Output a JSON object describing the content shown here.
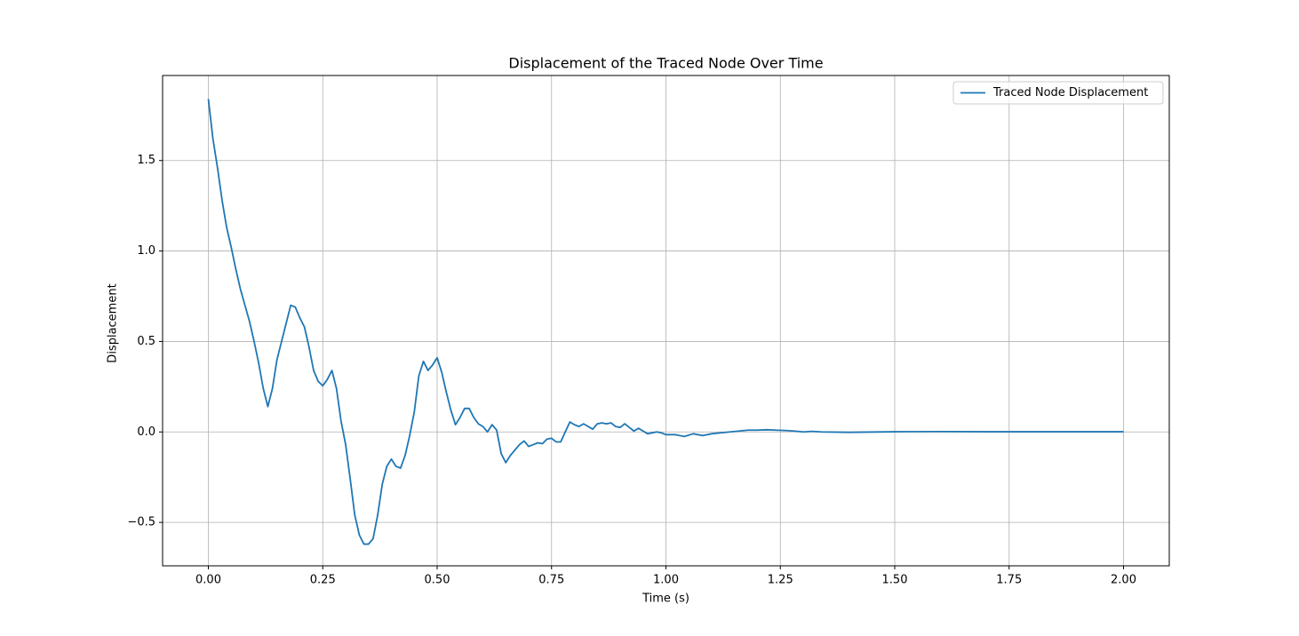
{
  "chart_data": {
    "type": "line",
    "title": "Displacement of the Traced Node Over Time",
    "x_label": "Time (s)",
    "y_label": "Displacement",
    "x": [
      0,
      0.01,
      0.02,
      0.03,
      0.04,
      0.05,
      0.06,
      0.07,
      0.08,
      0.09,
      0.1,
      0.11,
      0.12,
      0.13,
      0.14,
      0.15,
      0.16,
      0.17,
      0.18,
      0.19,
      0.2,
      0.21,
      0.22,
      0.23,
      0.24,
      0.25,
      0.26,
      0.27,
      0.28,
      0.29,
      0.3,
      0.31,
      0.32,
      0.33,
      0.34,
      0.35,
      0.36,
      0.37,
      0.38,
      0.39,
      0.4,
      0.41,
      0.42,
      0.43,
      0.44,
      0.45,
      0.46,
      0.47,
      0.48,
      0.49,
      0.5,
      0.51,
      0.52,
      0.53,
      0.54,
      0.55,
      0.56,
      0.57,
      0.58,
      0.59,
      0.6,
      0.61,
      0.62,
      0.63,
      0.64,
      0.65,
      0.66,
      0.67,
      0.68,
      0.69,
      0.7,
      0.71,
      0.72,
      0.73,
      0.74,
      0.75,
      0.76,
      0.77,
      0.78,
      0.79,
      0.8,
      0.81,
      0.82,
      0.83,
      0.84,
      0.85,
      0.86,
      0.87,
      0.88,
      0.89,
      0.9,
      0.91,
      0.92,
      0.93,
      0.94,
      0.95,
      0.96,
      0.97,
      0.98,
      0.99,
      1.0,
      1.02,
      1.04,
      1.06,
      1.08,
      1.1,
      1.12,
      1.14,
      1.16,
      1.18,
      1.2,
      1.22,
      1.24,
      1.26,
      1.28,
      1.3,
      1.32,
      1.34,
      1.4,
      1.5,
      1.6,
      1.7,
      1.8,
      1.9,
      2.0
    ],
    "series": [
      {
        "name": "Traced Node Displacement",
        "color": "#1f77b4",
        "values": [
          1.84,
          1.62,
          1.46,
          1.28,
          1.13,
          1.02,
          0.9,
          0.79,
          0.7,
          0.61,
          0.5,
          0.38,
          0.24,
          0.14,
          0.24,
          0.4,
          0.5,
          0.6,
          0.7,
          0.69,
          0.63,
          0.58,
          0.47,
          0.34,
          0.28,
          0.255,
          0.29,
          0.34,
          0.24,
          0.06,
          -0.07,
          -0.26,
          -0.46,
          -0.57,
          -0.62,
          -0.62,
          -0.59,
          -0.46,
          -0.29,
          -0.19,
          -0.15,
          -0.19,
          -0.2,
          -0.13,
          -0.02,
          0.11,
          0.31,
          0.39,
          0.34,
          0.37,
          0.41,
          0.33,
          0.22,
          0.12,
          0.04,
          0.08,
          0.13,
          0.13,
          0.08,
          0.045,
          0.03,
          0.0,
          0.04,
          0.01,
          -0.12,
          -0.17,
          -0.13,
          -0.1,
          -0.07,
          -0.05,
          -0.08,
          -0.07,
          -0.06,
          -0.065,
          -0.04,
          -0.035,
          -0.055,
          -0.055,
          0.0,
          0.055,
          0.04,
          0.03,
          0.045,
          0.03,
          0.015,
          0.045,
          0.05,
          0.045,
          0.05,
          0.03,
          0.025,
          0.045,
          0.025,
          0.005,
          0.02,
          0.005,
          -0.01,
          -0.005,
          0,
          -0.005,
          -0.015,
          -0.015,
          -0.025,
          -0.01,
          -0.02,
          -0.01,
          -0.005,
          0,
          0.005,
          0.01,
          0.01,
          0.012,
          0.01,
          0.008,
          0.005,
          0.0,
          0.003,
          0.0,
          -0.002,
          0.001,
          0.002,
          0.001,
          0.001,
          0.001,
          0.001
        ]
      }
    ],
    "xlim": [
      -0.1,
      2.1
    ],
    "ylim": [
      -0.74,
      1.97
    ],
    "xticks": [
      {
        "value": 0,
        "label": "0.00"
      },
      {
        "value": 0.25,
        "label": "0.25"
      },
      {
        "value": 0.5,
        "label": "0.50"
      },
      {
        "value": 0.75,
        "label": "0.75"
      },
      {
        "value": 1,
        "label": "1.00"
      },
      {
        "value": 1.25,
        "label": "1.25"
      },
      {
        "value": 1.5,
        "label": "1.50"
      },
      {
        "value": 1.75,
        "label": "1.75"
      },
      {
        "value": 2,
        "label": "2.00"
      }
    ],
    "yticks": [
      {
        "value": -0.5,
        "label": "−0.5"
      },
      {
        "value": 0,
        "label": "0.0"
      },
      0.5,
      {
        "value": 1,
        "label": "1.0"
      },
      1.5
    ],
    "grid": true,
    "legend": "upper right"
  }
}
